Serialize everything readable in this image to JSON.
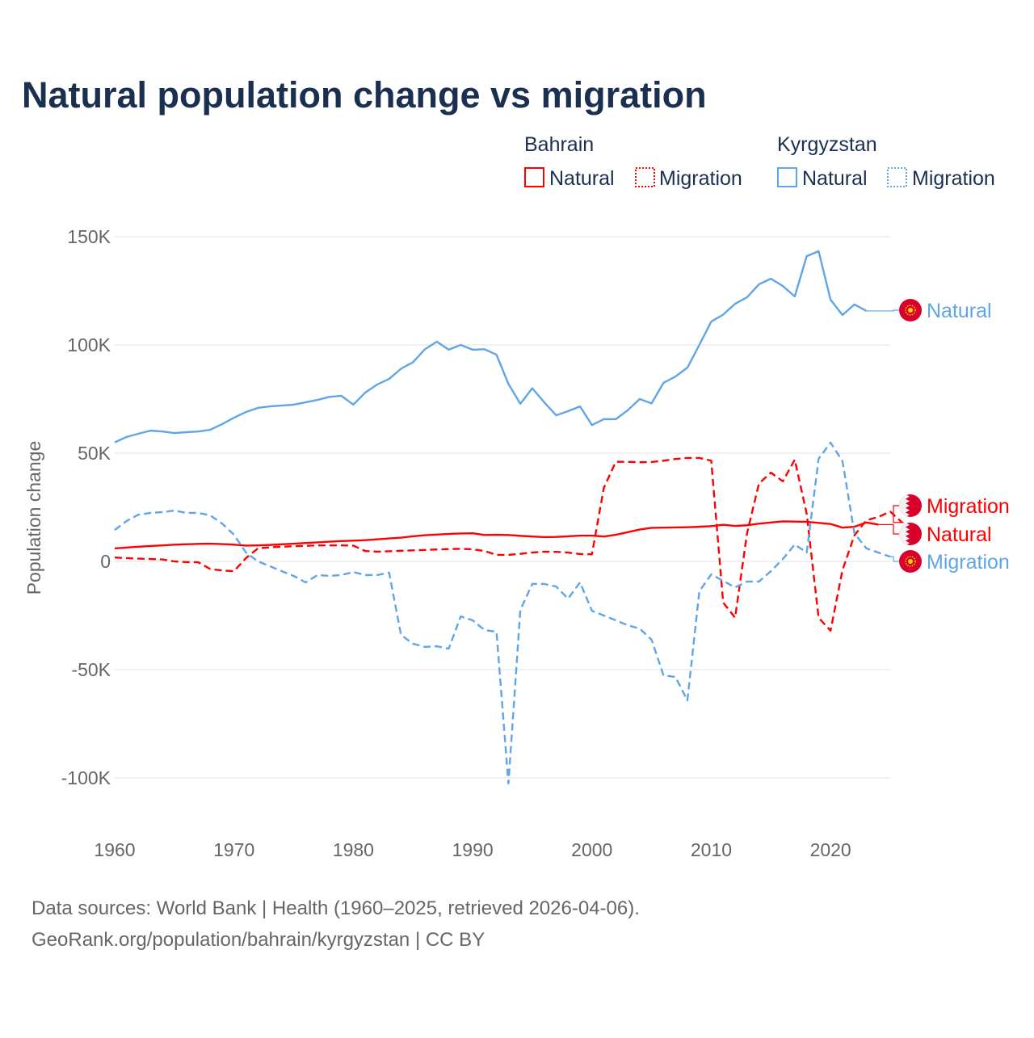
{
  "title": "Natural population change vs migration",
  "legend": {
    "groups": [
      {
        "country": "Bahrain",
        "items": [
          "Natural",
          "Migration"
        ]
      },
      {
        "country": "Kyrgyzstan",
        "items": [
          "Natural",
          "Migration"
        ]
      }
    ]
  },
  "footer": {
    "line1": "Data sources: World Bank | Health (1960–2025, retrieved 2026-04-06).",
    "line2": "GeoRank.org/population/bahrain/kyrgyzstan | CC BY"
  },
  "colors": {
    "bahrain": "#ff0000",
    "kyrgyzstan": "#5fa5e8",
    "title": "#1b2f50"
  },
  "chart_data": {
    "type": "line",
    "title": "Natural population change vs migration",
    "xlabel": "",
    "ylabel": "Population change",
    "xlim": [
      1960,
      2025
    ],
    "ylim": [
      -100000,
      150000
    ],
    "x_ticks": [
      1960,
      1970,
      1980,
      1990,
      2000,
      2010,
      2020
    ],
    "x_tick_labels": [
      "1960",
      "1970",
      "1980",
      "1990",
      "2000",
      "2010",
      "2020"
    ],
    "y_ticks": [
      150000,
      100000,
      50000,
      0,
      -50000,
      -100000
    ],
    "y_tick_labels": [
      "150K",
      "100K",
      "50K",
      "0",
      "-50K",
      "-100K"
    ],
    "grid": true,
    "legend_position": "top-right",
    "series": [
      {
        "name": "Kyrgyzstan Natural",
        "country": "Kyrgyzstan",
        "kind": "Natural",
        "end_label": "Natural",
        "dashed": false,
        "start_year": 1960,
        "values_k": [
          55,
          57.5,
          59,
          60.4,
          60,
          59.3,
          59.7,
          60,
          60.8,
          63.4,
          66.4,
          69,
          70.9,
          71.6,
          72,
          72.4,
          73.5,
          74.6,
          76,
          76.5,
          72.4,
          78,
          81.7,
          84.3,
          89,
          92,
          98,
          101.5,
          97.8,
          100,
          97.8,
          98,
          95.5,
          82,
          72.8,
          80,
          73.5,
          67.5,
          69.4,
          71.6,
          63,
          65.7,
          65.7,
          69.8,
          75,
          73,
          82.5,
          85.4,
          89.5,
          100,
          110.8,
          114,
          119,
          122,
          128,
          130.6,
          127.2,
          122.4,
          141,
          143.3,
          120.9,
          113.8,
          118.7,
          115.7
        ]
      },
      {
        "name": "Bahrain Migration",
        "country": "Bahrain",
        "kind": "Migration",
        "end_label": "Migration",
        "dashed": true,
        "start_year": 1960,
        "values_k": [
          1.8,
          1.5,
          1.3,
          1.1,
          0.9,
          0,
          -0.3,
          -0.4,
          -3.5,
          -4.2,
          -4.5,
          1.5,
          6,
          6.5,
          6.8,
          7,
          7.2,
          7.4,
          7.4,
          7.4,
          7.3,
          4.8,
          4.5,
          4.7,
          4.9,
          5.1,
          5.3,
          5.5,
          5.7,
          5.8,
          5.6,
          4.8,
          3,
          3,
          3.5,
          4.1,
          4.5,
          4.4,
          4.1,
          3.4,
          3.3,
          34,
          46,
          46,
          45.8,
          45.9,
          46.5,
          47.3,
          47.8,
          47.8,
          46.5,
          -19,
          -26,
          13,
          36,
          41,
          37,
          47,
          22,
          -26,
          -32,
          -4,
          12,
          19,
          20.5,
          23,
          18
        ]
      },
      {
        "name": "Bahrain Natural",
        "country": "Bahrain",
        "kind": "Natural",
        "end_label": "Natural",
        "dashed": false,
        "start_year": 1960,
        "values_k": [
          6,
          6.4,
          6.8,
          7.1,
          7.4,
          7.7,
          7.9,
          8.1,
          8.2,
          8,
          7.7,
          7.3,
          7.4,
          7.6,
          7.9,
          8.2,
          8.5,
          8.8,
          9.1,
          9.4,
          9.6,
          9.8,
          10.2,
          10.6,
          11,
          11.6,
          12.1,
          12.4,
          12.7,
          12.9,
          13,
          12.2,
          12.3,
          12.2,
          11.8,
          11.5,
          11.2,
          11.3,
          11.6,
          11.9,
          11.9,
          11.5,
          12.3,
          13.5,
          14.7,
          15.5,
          15.6,
          15.7,
          15.8,
          16,
          16.3,
          16.9,
          16.4,
          16.7,
          17.4,
          18,
          18.5,
          18.4,
          18.3,
          17.8,
          17.3,
          15.6,
          16,
          18,
          17
        ]
      },
      {
        "name": "Kyrgyzstan Migration",
        "country": "Kyrgyzstan",
        "kind": "Migration",
        "end_label": "Migration",
        "dashed": true,
        "start_year": 1960,
        "values_k": [
          14.5,
          18.7,
          21.6,
          22.4,
          22.8,
          23.5,
          22.4,
          22.4,
          21.3,
          17.5,
          12.3,
          4.1,
          0,
          -2.2,
          -4.5,
          -6.7,
          -9.7,
          -6.3,
          -6.7,
          -6.3,
          -4.9,
          -6.3,
          -6.3,
          -5.2,
          -34,
          -38,
          -39.5,
          -39.2,
          -40.3,
          -25.4,
          -27.2,
          -31.7,
          -32.5,
          -102.6,
          -22.4,
          -10.4,
          -10.4,
          -11.6,
          -17.2,
          -9.7,
          -22.8,
          -25,
          -27.2,
          -29.5,
          -31,
          -36.2,
          -52.6,
          -53.4,
          -64.2,
          -13.8,
          -6,
          -9,
          -12,
          -9.3,
          -9.3,
          -4.5,
          1.1,
          7.8,
          4.1,
          47.4,
          54.9,
          46.3,
          13,
          6,
          4.1,
          2.2
        ]
      }
    ]
  }
}
